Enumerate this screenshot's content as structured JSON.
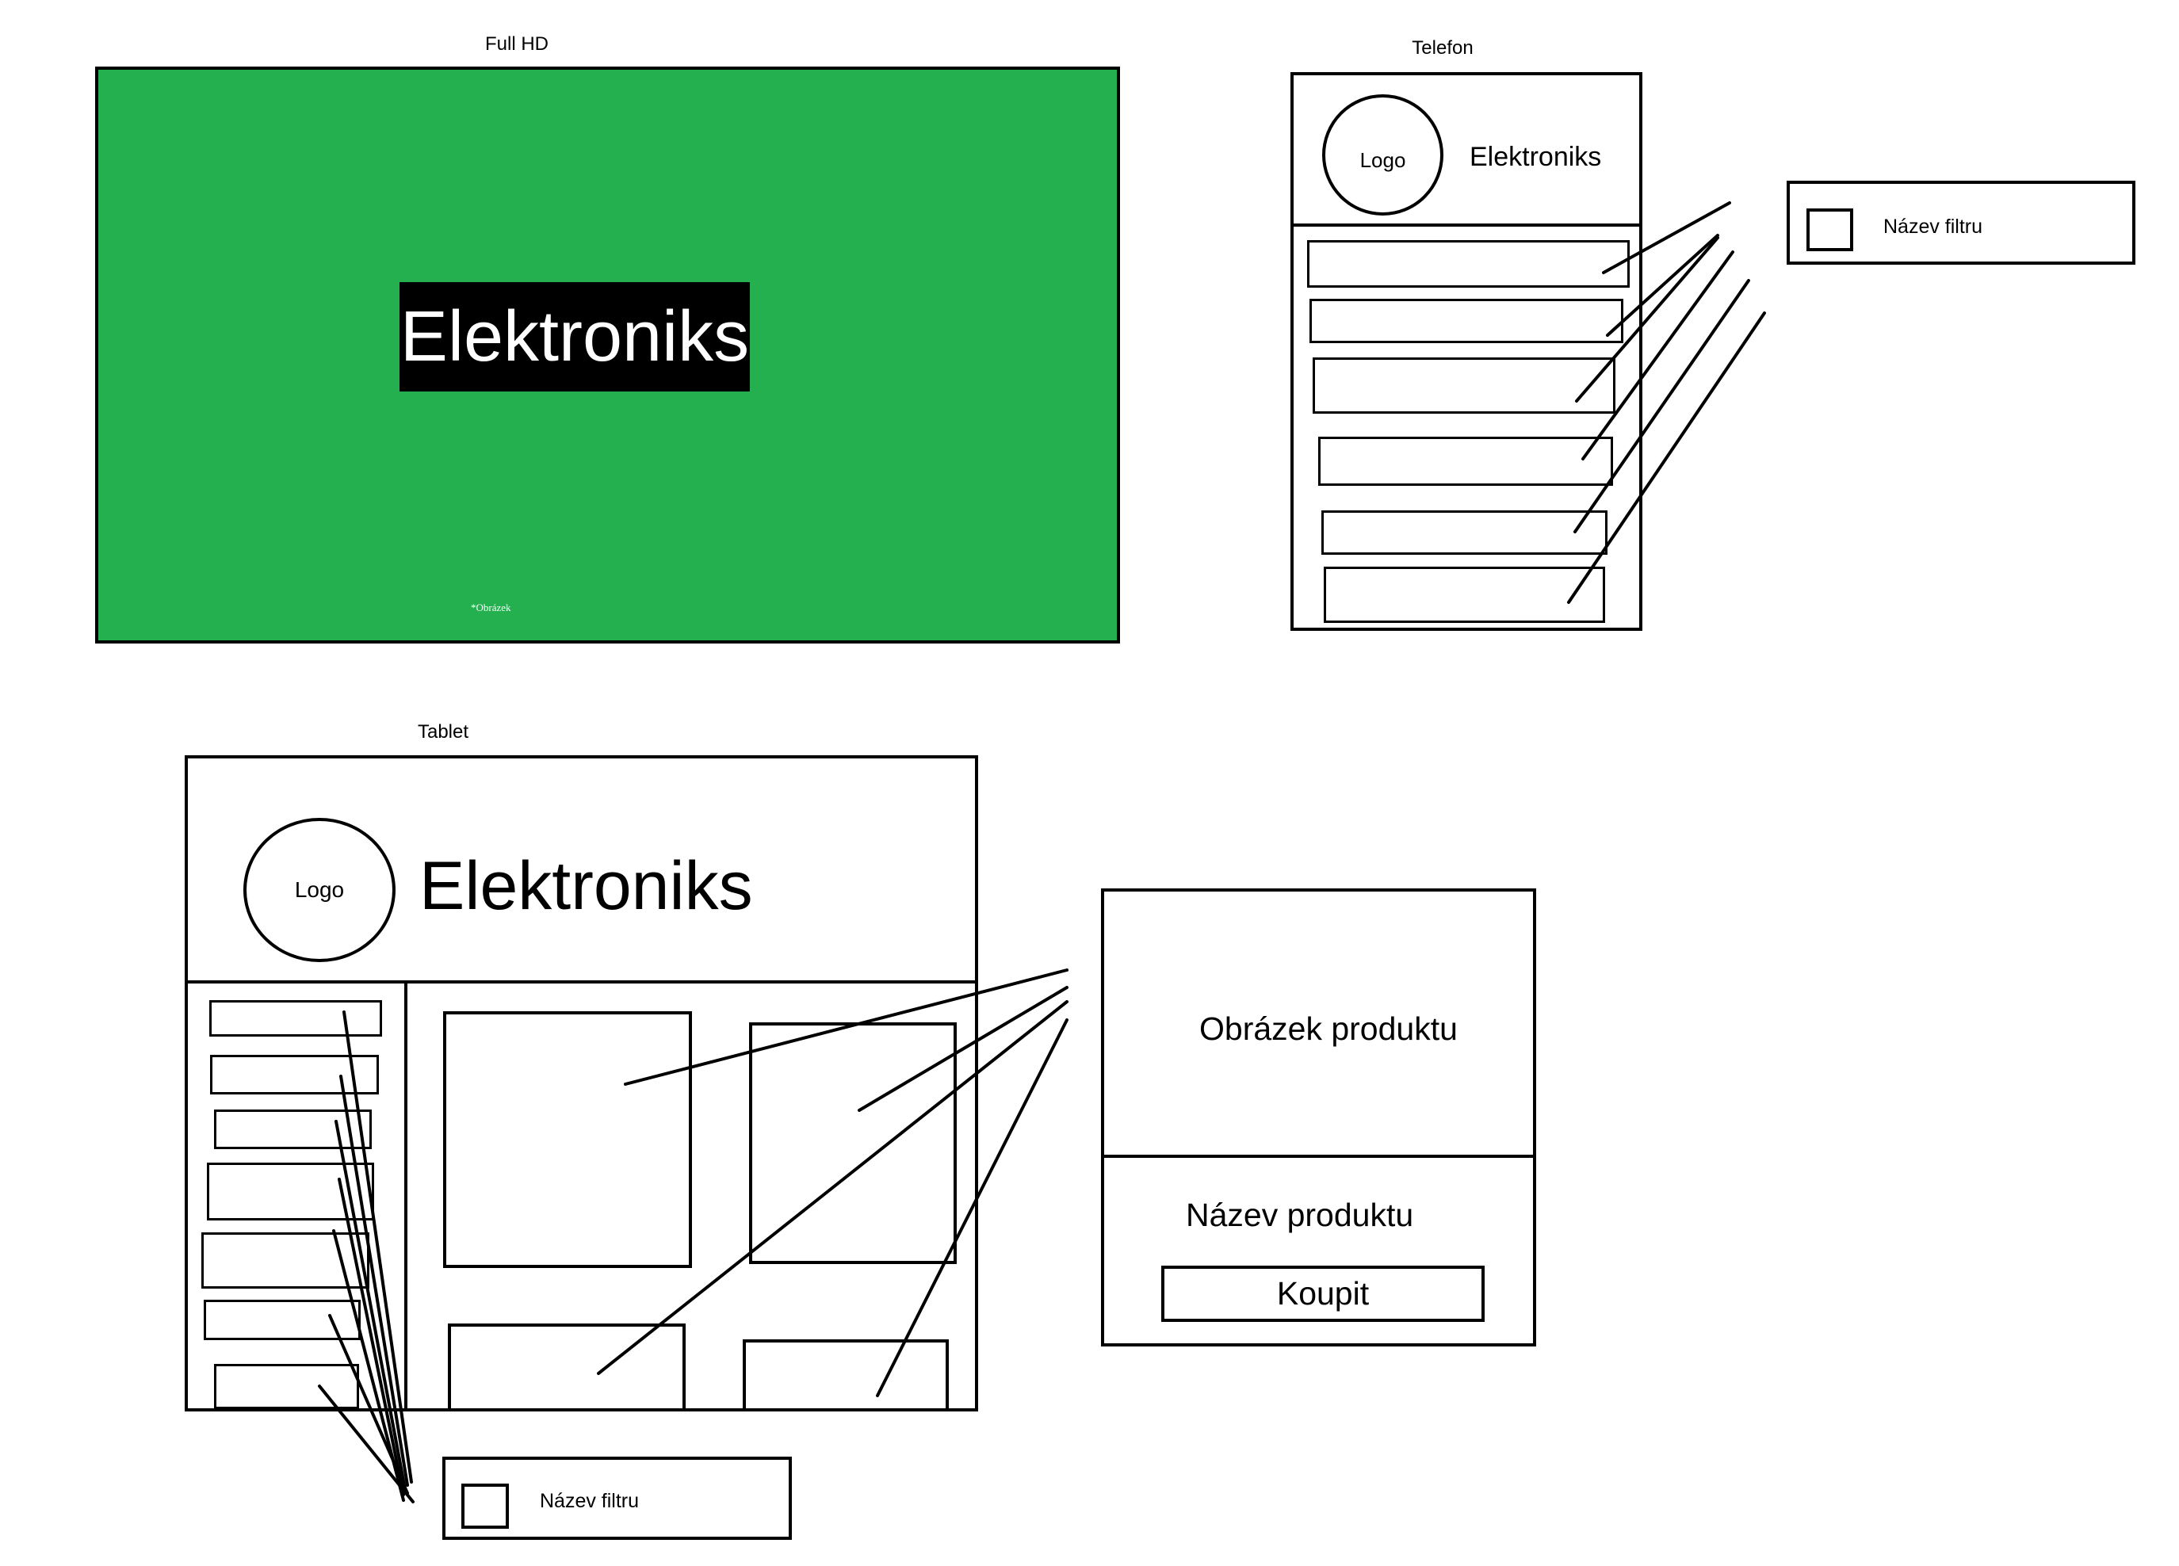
{
  "full_hd": {
    "section_title": "Full HD",
    "hero_title": "Elektroniks",
    "image_note": "*Obrázek",
    "colors": {
      "background": "#24b04e",
      "title_bg": "#000000",
      "title_text": "#ffffff"
    }
  },
  "telefon": {
    "section_title": "Telefon",
    "logo": "Logo",
    "brand": "Elektroniks",
    "filter_panel": {
      "label": "Název filtru"
    }
  },
  "tablet": {
    "section_title": "Tablet",
    "logo": "Logo",
    "brand": "Elektroniks",
    "filter_panel": {
      "label": "Název filtru"
    }
  },
  "product_card": {
    "image_label": "Obrázek produktu",
    "name_label": "Název produktu",
    "buy_button": "Koupit"
  }
}
